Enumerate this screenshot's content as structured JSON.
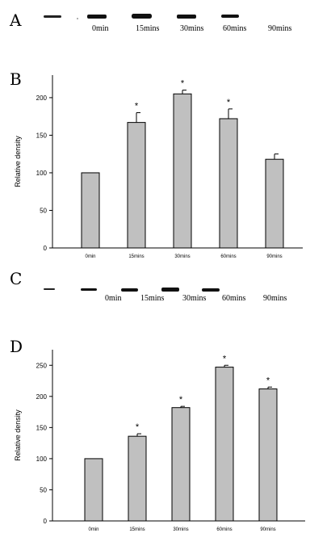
{
  "panels": {
    "a": {
      "letter": "A",
      "lane_labels": [
        "0min",
        "15mins",
        "30mins",
        "60mins",
        "90mins"
      ]
    },
    "b": {
      "letter": "B"
    },
    "c": {
      "letter": "C",
      "lane_labels": [
        "0min",
        "15mins",
        "30mins",
        "60mins",
        "90mins"
      ]
    },
    "d": {
      "letter": "D"
    }
  },
  "chart_data": [
    {
      "type": "bar",
      "panel": "B",
      "categories": [
        "0min",
        "15mins",
        "30mins",
        "60mins",
        "90mins"
      ],
      "values": [
        100,
        167,
        205,
        172,
        118
      ],
      "errors": [
        0,
        13,
        5,
        13,
        7
      ],
      "significant": [
        false,
        true,
        true,
        true,
        false
      ],
      "significance_marker": "*",
      "xlabel": "",
      "ylabel": "Relative density",
      "ylim": [
        0,
        230
      ],
      "yticks": [
        0,
        50,
        100,
        150,
        200
      ],
      "bar_color": "#c0c0c0",
      "grid": false
    },
    {
      "type": "bar",
      "panel": "D",
      "categories": [
        "0min",
        "15mins",
        "30mins",
        "60mins",
        "90mins"
      ],
      "values": [
        100,
        136,
        182,
        247,
        212
      ],
      "errors": [
        0,
        4,
        2,
        3,
        3
      ],
      "significant": [
        false,
        true,
        true,
        true,
        true
      ],
      "significance_marker": "*",
      "xlabel": "",
      "ylabel": "Relative density",
      "ylim": [
        0,
        275
      ],
      "yticks": [
        0,
        50,
        100,
        150,
        200,
        250
      ],
      "bar_color": "#c0c0c0",
      "grid": false
    }
  ]
}
